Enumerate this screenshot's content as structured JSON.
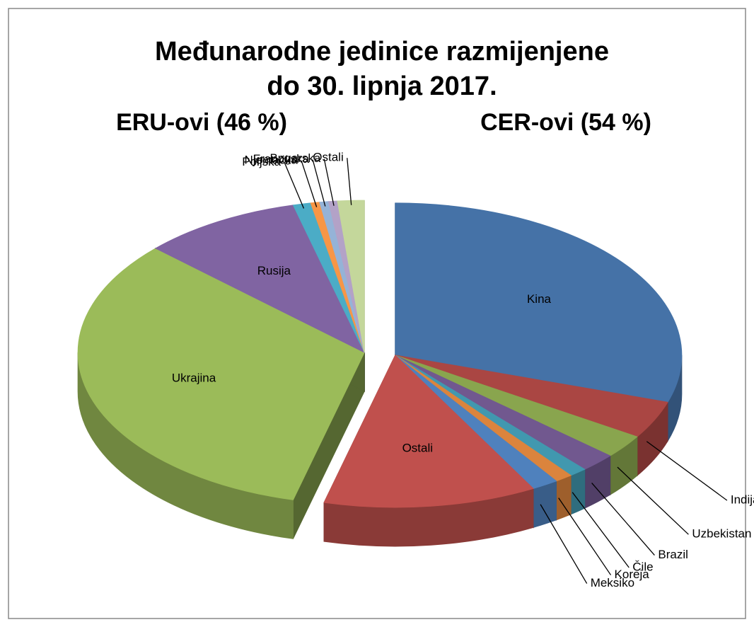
{
  "chart_data": {
    "type": "pie",
    "title": [
      "Međunarodne jedinice razmijenjene",
      "do 30. lipnja 2017."
    ],
    "series": [
      {
        "name": "CER-ovi (54 %)",
        "categories": [
          "Kina",
          "Indija",
          "Uzbekistan",
          "Brazil",
          "Čile",
          "Koreja",
          "Meksiko",
          "Ostali"
        ],
        "values": [
          30,
          4,
          2.5,
          2,
          1,
          1,
          1.5,
          12
        ],
        "colors": [
          "#4572a7",
          "#aa4643",
          "#89a54e",
          "#71588f",
          "#4198af",
          "#db843d",
          "#4f81bd",
          "#c0504d"
        ]
      },
      {
        "name": "ERU-ovi (46 %)",
        "categories": [
          "Ukrajina",
          "Rusija",
          "Poljska",
          "Njemačka",
          "Francuska",
          "Bugarska",
          "Ostali"
        ],
        "values": [
          33,
          9,
          1,
          0.5,
          0.5,
          0.5,
          1.5
        ],
        "colors": [
          "#9bbb59",
          "#8064a2",
          "#4bacc6",
          "#f79646",
          "#95b3d7",
          "#b3a2c7",
          "#c4d79b"
        ]
      }
    ]
  }
}
